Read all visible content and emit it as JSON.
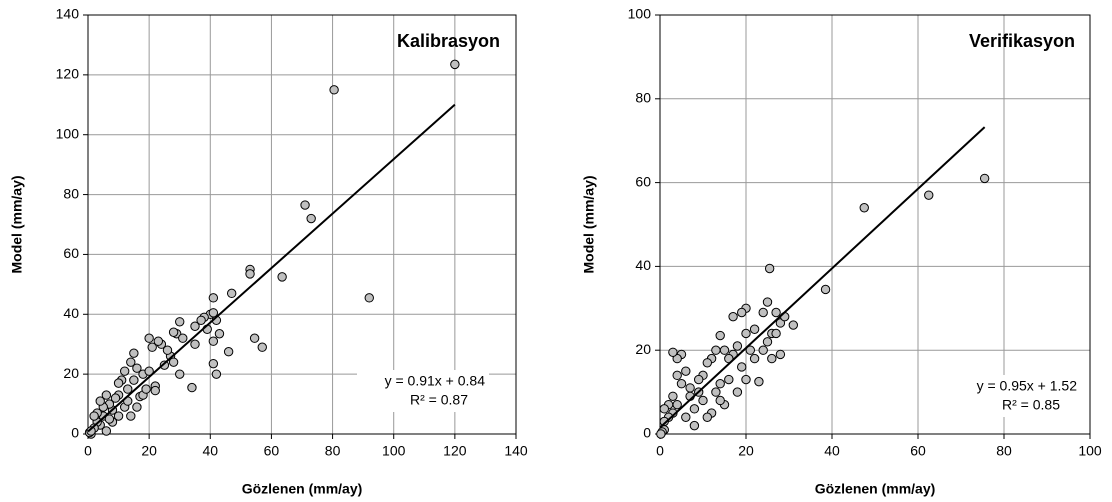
{
  "chart_data": [
    {
      "type": "scatter",
      "title": "Kalibrasyon",
      "x_label": "Gözlenen (mm/ay)",
      "y_label": "Model (mm/ay)",
      "equation": "y = 0.91x + 0.84",
      "r_squared": "R² = 0.87",
      "trendline": {
        "slope": 0.91,
        "intercept": 0.84,
        "xlim": [
          0,
          120
        ]
      },
      "color": "#c0c0c0",
      "grid": true,
      "xlim": [
        0,
        140
      ],
      "ylim": [
        0,
        140
      ],
      "xticks": [
        0,
        20,
        40,
        60,
        80,
        100,
        120,
        140
      ],
      "yticks": [
        0,
        20,
        40,
        60,
        80,
        100,
        120,
        140
      ],
      "x": [
        120,
        80.5,
        71,
        73,
        92,
        63.5,
        53,
        53,
        47,
        41,
        54.5,
        57,
        46,
        42,
        41,
        41,
        43,
        42,
        40,
        41,
        38,
        39,
        37,
        35,
        34,
        30,
        29,
        28,
        27,
        28,
        30,
        24,
        23,
        21,
        20,
        22,
        22,
        18,
        17,
        16,
        15,
        14,
        15,
        13,
        12,
        11,
        10,
        10,
        9,
        8,
        7,
        6,
        5,
        5,
        4,
        4,
        3,
        3,
        2,
        2,
        1,
        0.5,
        1,
        8,
        10,
        12,
        14,
        16,
        18,
        19,
        20,
        13,
        6,
        7,
        25,
        26,
        31,
        35
      ],
      "values": [
        123.5,
        115,
        76.5,
        72,
        45.5,
        52.5,
        55,
        53.5,
        47,
        45.5,
        32,
        29,
        27.5,
        20,
        23.5,
        31,
        33.5,
        38,
        40,
        40.5,
        39,
        35,
        38,
        30,
        15.5,
        37.5,
        33.5,
        34,
        26,
        24,
        20,
        30,
        31,
        29,
        32,
        16,
        14.5,
        20,
        12.5,
        22,
        27,
        24,
        18,
        15,
        21,
        18,
        13,
        17,
        12,
        8,
        10,
        13,
        9,
        6,
        3,
        11,
        7,
        4,
        2,
        6,
        0,
        0.5,
        1,
        4,
        6,
        9,
        6,
        9,
        13,
        15,
        21,
        11,
        1,
        5,
        23,
        28,
        32,
        36
      ]
    },
    {
      "type": "scatter",
      "title": "Verifikasyon",
      "x_label": "Gözlenen (mm/ay)",
      "y_label": "Model (mm/ay)",
      "equation": "y = 0.95x + 1.52",
      "r_squared": "R² = 0.85",
      "trendline": {
        "slope": 0.95,
        "intercept": 1.52,
        "xlim": [
          0,
          75.5
        ]
      },
      "color": "#c0c0c0",
      "grid": true,
      "xlim": [
        0,
        100
      ],
      "ylim": [
        0,
        100
      ],
      "xticks": [
        0,
        20,
        40,
        60,
        80,
        100
      ],
      "yticks": [
        0,
        20,
        40,
        60,
        80,
        100
      ],
      "x": [
        75.5,
        62.5,
        47.5,
        38.5,
        25.5,
        25,
        27,
        28,
        29,
        31,
        26,
        24,
        22,
        23,
        20,
        19,
        17,
        20,
        18,
        17,
        16,
        19,
        15,
        14,
        13,
        12,
        11,
        14,
        13,
        15,
        14,
        12,
        10,
        10,
        9,
        8,
        7,
        7,
        6,
        5,
        5,
        4,
        3,
        4,
        4,
        3,
        3,
        2,
        2,
        1,
        1,
        1,
        0.5,
        0.2,
        6,
        8,
        11,
        9,
        21,
        24,
        26,
        28,
        16,
        18,
        22,
        20,
        27,
        25
      ],
      "values": [
        61,
        57,
        54,
        34.5,
        39.5,
        31.5,
        29,
        26.5,
        28,
        26,
        24,
        29,
        25,
        12.5,
        30,
        29,
        28,
        24,
        21,
        19,
        18,
        16,
        20,
        23.5,
        20,
        18,
        17,
        12,
        10,
        7,
        8,
        5,
        14,
        8,
        10,
        6,
        11,
        9,
        15,
        12,
        19,
        18,
        19.5,
        14,
        7,
        9,
        5,
        7,
        4,
        6,
        3,
        1,
        0.5,
        0,
        4,
        2,
        4,
        13,
        20,
        20,
        18,
        19,
        13,
        10,
        18,
        13,
        24,
        22
      ]
    }
  ]
}
